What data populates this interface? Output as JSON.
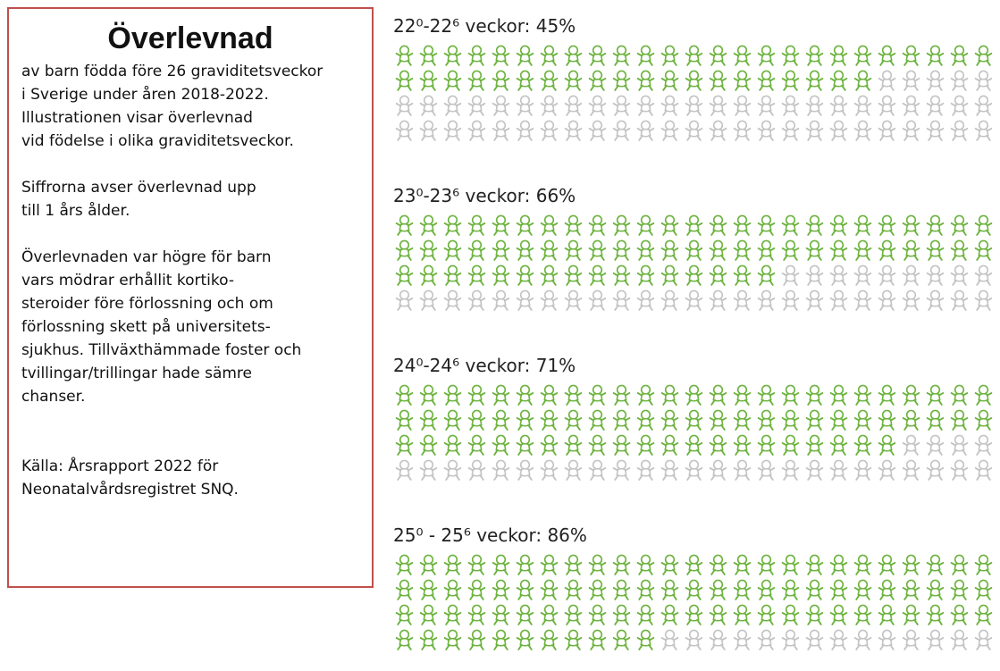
{
  "panel": {
    "title": "Överlevnad",
    "paragraphs": [
      [
        "av barn födda före 26 graviditetsveckor",
        "i Sverige under åren 2018-2022.",
        "Illustrationen visar överlevnad",
        "vid födelse i olika graviditetsveckor."
      ],
      [
        "Siffrorna avser överlevnad upp",
        "till 1 års ålder."
      ],
      [
        "Överlevnaden var högre för barn",
        "vars mödrar erhållit kortiko-",
        "steroider före förlossning och om",
        "förlossning skett på universitets-",
        "sjukhus. Tillväxthämmade foster och",
        "tvillingar/trillingar hade sämre",
        "chanser."
      ],
      [
        "Källa: Årsrapport 2022 för",
        "Neonatalvårdsregistret SNQ."
      ]
    ]
  },
  "chart_data": {
    "type": "pictogram",
    "categories": [
      "22⁰-22⁶ veckor:",
      "23⁰-23⁶ veckor:",
      "24⁰-24⁶ veckor:",
      "25⁰ - 25⁶ veckor:"
    ],
    "values": [
      45,
      66,
      71,
      86
    ],
    "value_labels": [
      "45%",
      "66%",
      "71%",
      "86%"
    ],
    "color": "#6db33f",
    "empty_color": "#c4c4c4"
  }
}
